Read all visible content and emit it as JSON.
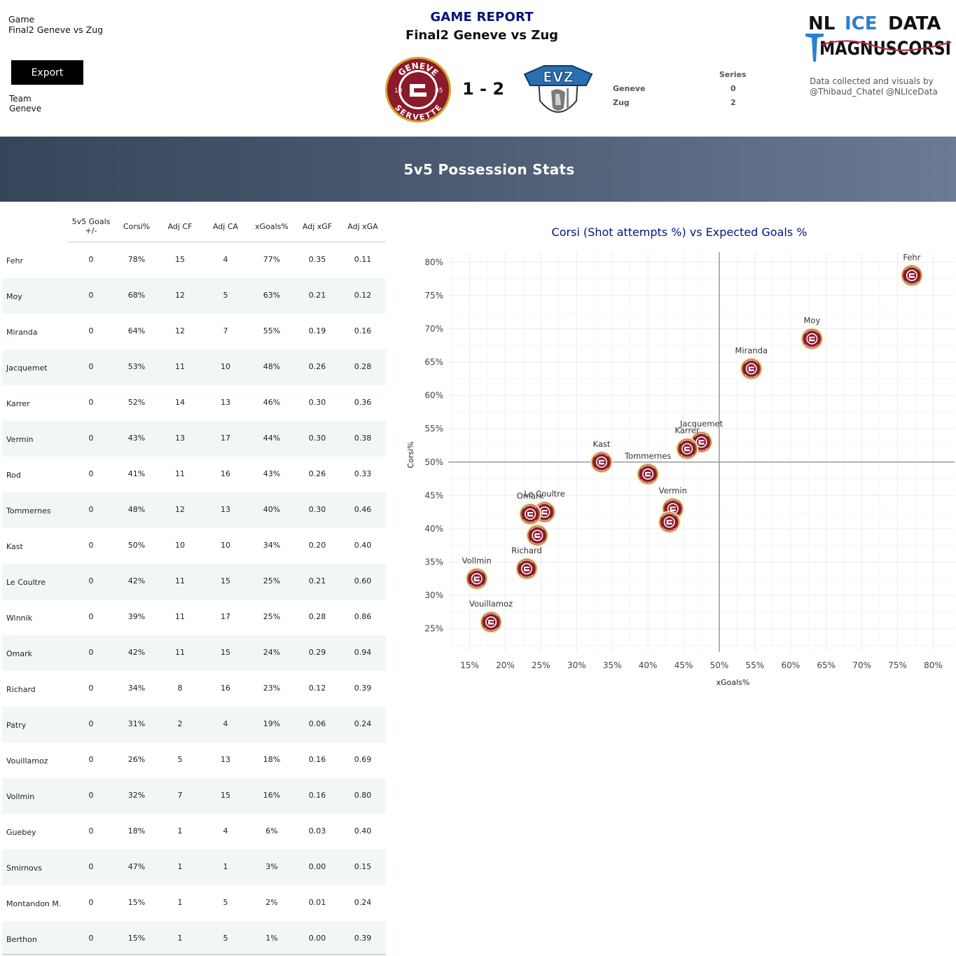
{
  "header": {
    "game_label": "Game",
    "game_value": "Final2 Geneve vs Zug",
    "export_label": "Export",
    "team_label": "Team",
    "team_value": "Geneve",
    "report_title": "GAME REPORT",
    "report_subtitle": "Final2 Geneve vs Zug",
    "score": "1 - 2",
    "home_logo_text_top": "GENEVE",
    "home_logo_text_bottom": "SERVETTE",
    "home_logo_left": "19",
    "home_logo_right": "05",
    "away_logo_text": "EVZ",
    "series_header": "Series",
    "series": [
      {
        "team": "Geneve",
        "wins": "0"
      },
      {
        "team": "Zug",
        "wins": "2"
      }
    ],
    "brand_line1_a": "NL",
    "brand_line1_b": "ICE",
    "brand_line1_c": "DATA",
    "brand_line2": "MAGNUSCORSI",
    "credit_line1": "Data collected and visuals by",
    "credit_line2": "@Thibaud_Chatel @NLIceData",
    "colors": {
      "title_blue": "#00147a",
      "geneve_red": "#8b1a2b",
      "geneve_gold": "#d4a52b",
      "brand_blue": "#2a7fd4"
    }
  },
  "section_title": "5v5 Possession Stats",
  "table": {
    "columns": [
      "5v5 Goals +/-",
      "Corsi%",
      "Adj CF",
      "Adj CA",
      "xGoals%",
      "Adj xGF",
      "Adj xGA"
    ],
    "rows": [
      [
        "Fehr",
        "0",
        "78%",
        "15",
        "4",
        "77%",
        "0.35",
        "0.11"
      ],
      [
        "Moy",
        "0",
        "68%",
        "12",
        "5",
        "63%",
        "0.21",
        "0.12"
      ],
      [
        "Miranda",
        "0",
        "64%",
        "12",
        "7",
        "55%",
        "0.19",
        "0.16"
      ],
      [
        "Jacquemet",
        "0",
        "53%",
        "11",
        "10",
        "48%",
        "0.26",
        "0.28"
      ],
      [
        "Karrer",
        "0",
        "52%",
        "14",
        "13",
        "46%",
        "0.30",
        "0.36"
      ],
      [
        "Vermin",
        "0",
        "43%",
        "13",
        "17",
        "44%",
        "0.30",
        "0.38"
      ],
      [
        "Rod",
        "0",
        "41%",
        "11",
        "16",
        "43%",
        "0.26",
        "0.33"
      ],
      [
        "Tommernes",
        "0",
        "48%",
        "12",
        "13",
        "40%",
        "0.30",
        "0.46"
      ],
      [
        "Kast",
        "0",
        "50%",
        "10",
        "10",
        "34%",
        "0.20",
        "0.40"
      ],
      [
        "Le Coultre",
        "0",
        "42%",
        "11",
        "15",
        "25%",
        "0.21",
        "0.60"
      ],
      [
        "Winnik",
        "0",
        "39%",
        "11",
        "17",
        "25%",
        "0.28",
        "0.86"
      ],
      [
        "Omark",
        "0",
        "42%",
        "11",
        "15",
        "24%",
        "0.29",
        "0.94"
      ],
      [
        "Richard",
        "0",
        "34%",
        "8",
        "16",
        "23%",
        "0.12",
        "0.39"
      ],
      [
        "Patry",
        "0",
        "31%",
        "2",
        "4",
        "19%",
        "0.06",
        "0.24"
      ],
      [
        "Vouillamoz",
        "0",
        "26%",
        "5",
        "13",
        "18%",
        "0.16",
        "0.69"
      ],
      [
        "Vollmin",
        "0",
        "32%",
        "7",
        "15",
        "16%",
        "0.16",
        "0.80"
      ],
      [
        "Guebey",
        "0",
        "18%",
        "1",
        "4",
        "6%",
        "0.03",
        "0.40"
      ],
      [
        "Smirnovs",
        "0",
        "47%",
        "1",
        "1",
        "3%",
        "0.00",
        "0.15"
      ],
      [
        "Montandon M.",
        "0",
        "15%",
        "1",
        "5",
        "2%",
        "0.01",
        "0.24"
      ],
      [
        "Berthon",
        "0",
        "15%",
        "1",
        "5",
        "1%",
        "0.00",
        "0.39"
      ]
    ]
  },
  "chart_data": {
    "type": "scatter",
    "title": "Corsi (Shot attempts %) vs Expected Goals %",
    "xlabel": "xGoals%",
    "ylabel": "Corsi%",
    "xlim": [
      12,
      83
    ],
    "ylim": [
      21.5,
      81.5
    ],
    "xticks": [
      15,
      20,
      25,
      30,
      35,
      40,
      45,
      50,
      55,
      60,
      65,
      70,
      75,
      80
    ],
    "yticks": [
      25,
      30,
      35,
      40,
      45,
      50,
      55,
      60,
      65,
      70,
      75,
      80
    ],
    "tick_suffix": "%",
    "reference_lines": {
      "x": 50,
      "y": 50
    },
    "grid": true,
    "marker": "geneve-logo",
    "points": [
      {
        "label": "Fehr",
        "x": 77,
        "y": 78,
        "show_label": true
      },
      {
        "label": "Moy",
        "x": 63,
        "y": 68.5,
        "show_label": true
      },
      {
        "label": "Miranda",
        "x": 54.5,
        "y": 64,
        "show_label": true
      },
      {
        "label": "Jacquemet",
        "x": 47.5,
        "y": 53,
        "show_label": true
      },
      {
        "label": "Karrer",
        "x": 45.5,
        "y": 52,
        "show_label": true
      },
      {
        "label": "Vermin",
        "x": 43.5,
        "y": 43,
        "show_label": true
      },
      {
        "label": "Rod",
        "x": 43,
        "y": 41,
        "show_label": false
      },
      {
        "label": "Tommernes",
        "x": 40,
        "y": 48.2,
        "show_label": true
      },
      {
        "label": "Kast",
        "x": 33.5,
        "y": 50,
        "show_label": true
      },
      {
        "label": "Le Coultre",
        "x": 25.5,
        "y": 42.5,
        "show_label": true
      },
      {
        "label": "Winnik",
        "x": 24.5,
        "y": 39,
        "show_label": false
      },
      {
        "label": "Omark",
        "x": 23.5,
        "y": 42.2,
        "show_label": true
      },
      {
        "label": "Richard",
        "x": 23,
        "y": 34,
        "show_label": true
      },
      {
        "label": "Vollmin",
        "x": 16,
        "y": 32.5,
        "show_label": true
      },
      {
        "label": "Vouillamoz",
        "x": 18,
        "y": 26,
        "show_label": true
      }
    ]
  }
}
